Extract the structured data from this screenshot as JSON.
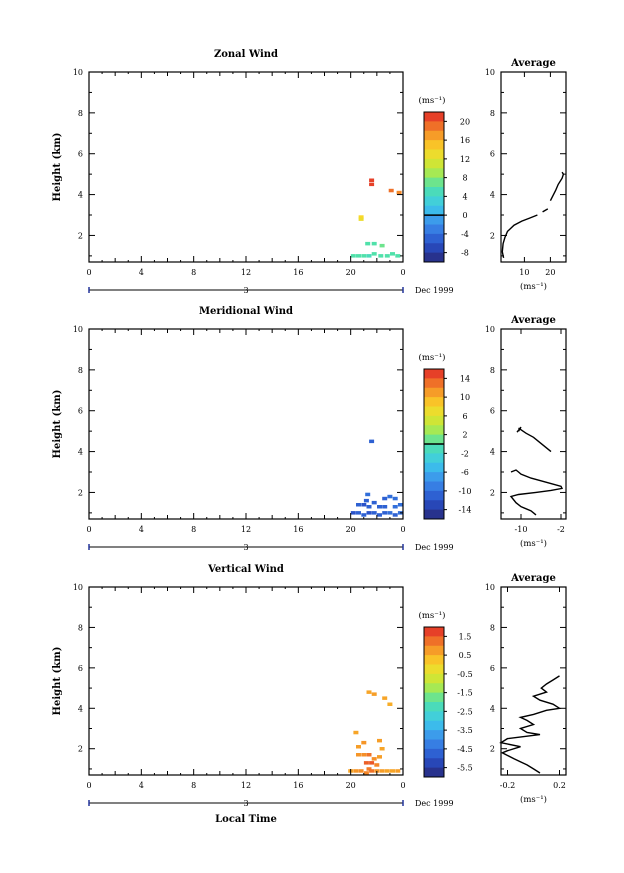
{
  "chart_data": [
    {
      "type": "heatmap",
      "title": "Zonal Wind",
      "ylabel": "Height (km)",
      "ylim": [
        0.7,
        10
      ],
      "yticks": [
        2,
        4,
        6,
        8,
        10
      ],
      "xlim": [
        0,
        24
      ],
      "xticks": [
        "0",
        "4",
        "8",
        "12",
        "16",
        "20",
        "0"
      ],
      "date_axis": {
        "day_label": "3",
        "month_label": "Dec 1999"
      },
      "colorbar": {
        "unit": "(ms⁻¹)",
        "ticks": [
          "20",
          "16",
          "12",
          "8",
          "4",
          "0",
          "-4",
          "-8"
        ],
        "vmin": -10,
        "vmax": 22,
        "zero_line": 0
      },
      "cells": [
        [
          21.6,
          4.5,
          21
        ],
        [
          21.6,
          4.7,
          21
        ],
        [
          23.1,
          4.2,
          19
        ],
        [
          23.7,
          4.1,
          18
        ],
        [
          20.8,
          2.9,
          14
        ],
        [
          20.8,
          2.8,
          13
        ],
        [
          21.3,
          1.6,
          6
        ],
        [
          21.8,
          1.6,
          6
        ],
        [
          22.4,
          1.5,
          7
        ],
        [
          20.2,
          1.0,
          6
        ],
        [
          20.6,
          1.0,
          6
        ],
        [
          21.0,
          1.0,
          6
        ],
        [
          21.4,
          1.0,
          5
        ],
        [
          21.8,
          1.1,
          6
        ],
        [
          22.3,
          1.0,
          6
        ],
        [
          22.8,
          1.0,
          6
        ],
        [
          23.2,
          1.1,
          6
        ],
        [
          23.6,
          1.0,
          6
        ]
      ],
      "average_profile": {
        "title": "Average",
        "xlabel": "(ms⁻¹)",
        "xticks": [
          10,
          20
        ],
        "xlim": [
          1,
          26
        ],
        "ylim": [
          0.7,
          10
        ],
        "yticks": [
          2,
          4,
          6,
          8,
          10
        ],
        "segments": [
          [
            [
              2,
              0.9
            ],
            [
              1.5,
              1.2
            ],
            [
              1.8,
              1.6
            ],
            [
              2.5,
              1.9
            ],
            [
              3.5,
              2.2
            ],
            [
              6,
              2.5
            ],
            [
              9,
              2.7
            ],
            [
              12,
              2.85
            ],
            [
              15,
              3.0
            ]
          ],
          [
            [
              17,
              3.15
            ],
            [
              19,
              3.3
            ]
          ],
          [
            [
              20,
              3.7
            ],
            [
              21,
              3.95
            ],
            [
              22,
              4.2
            ],
            [
              23,
              4.5
            ],
            [
              24.5,
              4.8
            ],
            [
              25,
              5.0
            ],
            [
              24.5,
              5.1
            ]
          ]
        ]
      }
    },
    {
      "type": "heatmap",
      "title": "Meridional Wind",
      "ylabel": "Height (km)",
      "ylim": [
        0.7,
        10
      ],
      "yticks": [
        2,
        4,
        6,
        8,
        10
      ],
      "xlim": [
        0,
        24
      ],
      "xticks": [
        "0",
        "4",
        "8",
        "12",
        "16",
        "20",
        "0"
      ],
      "date_axis": {
        "day_label": "3",
        "month_label": "Dec 1999"
      },
      "colorbar": {
        "unit": "(ms⁻¹)",
        "ticks": [
          "14",
          "10",
          "6",
          "2",
          "-2",
          "-6",
          "-10",
          "-14"
        ],
        "vmin": -16,
        "vmax": 16,
        "zero_line": 0
      },
      "cells": [
        [
          21.6,
          4.5,
          -11
        ],
        [
          21.3,
          1.9,
          -10
        ],
        [
          21.2,
          1.6,
          -11
        ],
        [
          22.6,
          1.7,
          -11
        ],
        [
          23.0,
          1.8,
          -10
        ],
        [
          23.4,
          1.7,
          -10
        ],
        [
          20.6,
          1.4,
          -11
        ],
        [
          21.0,
          1.4,
          -12
        ],
        [
          21.4,
          1.3,
          -11
        ],
        [
          22.2,
          1.3,
          -11
        ],
        [
          22.6,
          1.3,
          -11
        ],
        [
          23.4,
          1.3,
          -10
        ],
        [
          23.8,
          1.4,
          -10
        ],
        [
          21.8,
          1.5,
          -11
        ],
        [
          20.2,
          1.0,
          -12
        ],
        [
          20.6,
          1.0,
          -11
        ],
        [
          21.0,
          0.9,
          -11
        ],
        [
          21.4,
          1.0,
          -12
        ],
        [
          21.8,
          1.0,
          -11
        ],
        [
          22.2,
          0.9,
          -11
        ],
        [
          22.6,
          1.0,
          -11
        ],
        [
          23.0,
          1.0,
          -10
        ],
        [
          23.4,
          0.9,
          -11
        ],
        [
          23.8,
          1.0,
          -10
        ]
      ],
      "average_profile": {
        "title": "Average",
        "xlabel": "(ms⁻¹)",
        "xticks": [
          -10,
          -2
        ],
        "xlim": [
          -14,
          -1
        ],
        "ylim": [
          0.7,
          10
        ],
        "yticks": [
          2,
          4,
          6,
          8,
          10
        ],
        "segments": [
          [
            [
              -10.5,
              5.0
            ],
            [
              -10.0,
              5.2
            ],
            [
              -10.8,
              4.95
            ]
          ],
          [
            [
              -10.5,
              5.15
            ],
            [
              -9.0,
              4.9
            ],
            [
              -7.5,
              4.7
            ],
            [
              -6.0,
              4.4
            ],
            [
              -4.0,
              4.0
            ]
          ],
          [
            [
              -12.0,
              3.0
            ],
            [
              -11.0,
              3.1
            ],
            [
              -10.5,
              3.0
            ],
            [
              -10.0,
              2.9
            ],
            [
              -8.0,
              2.7
            ],
            [
              -5.0,
              2.5
            ],
            [
              -2.0,
              2.3
            ],
            [
              -1.8,
              2.2
            ],
            [
              -4.0,
              2.1
            ],
            [
              -7.0,
              2.0
            ],
            [
              -10.5,
              1.9
            ],
            [
              -12.0,
              1.8
            ],
            [
              -11.0,
              1.5
            ],
            [
              -10.0,
              1.3
            ],
            [
              -8.0,
              1.1
            ],
            [
              -7.0,
              0.9
            ]
          ]
        ]
      }
    },
    {
      "type": "heatmap",
      "title": "Vertical Wind",
      "ylabel": "Height (km)",
      "ylim": [
        0.7,
        10
      ],
      "yticks": [
        2,
        4,
        6,
        8,
        10
      ],
      "xlim": [
        0,
        24
      ],
      "xticks": [
        "0",
        "4",
        "8",
        "12",
        "16",
        "20",
        "0"
      ],
      "xlabel": "Local Time",
      "date_axis": {
        "day_label": "3",
        "month_label": "Dec 1999"
      },
      "colorbar": {
        "unit": "(ms⁻¹)",
        "ticks": [
          "1.5",
          "0.5",
          "-0.5",
          "-1.5",
          "-2.5",
          "-3.5",
          "-4.5",
          "-5.5"
        ],
        "vmin": -6.2,
        "vmax": 2.0
      },
      "cells": [
        [
          21.4,
          4.8,
          0.6
        ],
        [
          21.8,
          4.7,
          0.7
        ],
        [
          22.6,
          4.5,
          0.6
        ],
        [
          23.0,
          4.2,
          0.5
        ],
        [
          20.4,
          2.8,
          0.6
        ],
        [
          20.6,
          2.1,
          0.7
        ],
        [
          21.0,
          2.3,
          0.8
        ],
        [
          22.2,
          2.4,
          0.7
        ],
        [
          22.4,
          2.0,
          0.6
        ],
        [
          20.6,
          1.7,
          0.8
        ],
        [
          21.0,
          1.7,
          0.9
        ],
        [
          21.4,
          1.7,
          1.2
        ],
        [
          21.8,
          1.5,
          0.9
        ],
        [
          22.2,
          1.6,
          0.7
        ],
        [
          21.2,
          1.3,
          1.4
        ],
        [
          21.6,
          1.3,
          1.5
        ],
        [
          22.0,
          1.2,
          1.0
        ],
        [
          21.4,
          1.0,
          1.1
        ],
        [
          20.0,
          0.9,
          0.6
        ],
        [
          20.4,
          0.9,
          0.8
        ],
        [
          20.8,
          0.9,
          0.9
        ],
        [
          21.2,
          0.8,
          1.0
        ],
        [
          21.6,
          0.9,
          1.2
        ],
        [
          22.0,
          0.9,
          0.8
        ],
        [
          22.4,
          0.9,
          0.7
        ],
        [
          22.8,
          0.9,
          0.6
        ],
        [
          23.2,
          0.9,
          0.6
        ],
        [
          23.6,
          0.9,
          0.7
        ]
      ],
      "average_profile": {
        "title": "Average",
        "xlabel": "(ms⁻¹)",
        "xticks": [
          -0.2,
          0.2
        ],
        "xticklabels": [
          "-0.2",
          "0.2"
        ],
        "xlim": [
          -0.25,
          0.25
        ],
        "ylim": [
          0.7,
          10
        ],
        "yticks": [
          2,
          4,
          6,
          8,
          10
        ],
        "segments": [
          [
            [
              0.2,
              5.6
            ],
            [
              0.15,
              5.4
            ],
            [
              0.1,
              5.2
            ],
            [
              0.06,
              5.0
            ],
            [
              0.1,
              4.8
            ],
            [
              0.0,
              4.6
            ],
            [
              0.05,
              4.4
            ],
            [
              0.15,
              4.2
            ],
            [
              0.2,
              4.0
            ],
            [
              0.1,
              3.9
            ],
            [
              0.0,
              3.7
            ],
            [
              -0.1,
              3.55
            ],
            [
              -0.05,
              3.4
            ],
            [
              0.0,
              3.2
            ],
            [
              -0.1,
              3.0
            ],
            [
              -0.05,
              2.8
            ],
            [
              0.05,
              2.7
            ],
            [
              -0.2,
              2.5
            ],
            [
              -0.25,
              2.3
            ],
            [
              -0.1,
              2.1
            ],
            [
              -0.2,
              1.9
            ],
            [
              -0.24,
              1.8
            ],
            [
              -0.15,
              1.5
            ],
            [
              -0.05,
              1.2
            ],
            [
              0.0,
              1.0
            ],
            [
              0.05,
              0.8
            ]
          ]
        ]
      }
    }
  ]
}
